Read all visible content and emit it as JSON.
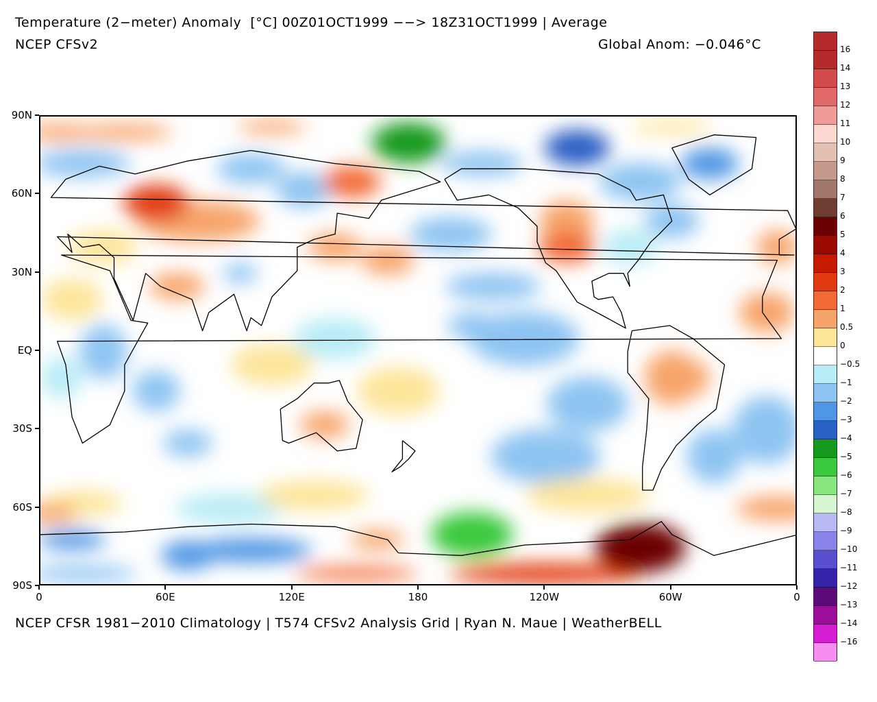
{
  "header": {
    "title": "Temperature (2−meter) Anomaly  [°C] 00Z01OCT1999 −−> 18Z31OCT1999 | Average",
    "subtitle": "NCEP CFSv2",
    "global_anom": "Global Anom: −0.046°C"
  },
  "footer": {
    "credit": "NCEP CFSR 1981−2010 Climatology | T574 CFSv2 Analysis Grid | Ryan N. Maue | WeatherBELL"
  },
  "map": {
    "projection": "equirectangular, Pacific-centered",
    "lat_labels": [
      "90N",
      "60N",
      "30N",
      "EQ",
      "30S",
      "60S",
      "90S"
    ],
    "lon_labels": [
      "0",
      "60E",
      "120E",
      "180",
      "120W",
      "60W",
      "0"
    ],
    "regions": [
      {
        "name": "arctic-east-siberia-cold",
        "lon": 175,
        "lat": 80,
        "value": -4
      },
      {
        "name": "canadian-arctic-cold",
        "lon": 255,
        "lat": 78,
        "value": -3
      },
      {
        "name": "greenland-cold",
        "lon": 318,
        "lat": 72,
        "value": -2
      },
      {
        "name": "russia-warm",
        "lon": 55,
        "lat": 57,
        "value": 3
      },
      {
        "name": "bering-warm",
        "lon": 148,
        "lat": 65,
        "value": 2
      },
      {
        "name": "western-usa-warm",
        "lon": 250,
        "lat": 40,
        "value": 2
      },
      {
        "name": "southern-ocean-pacific-cold",
        "lon": 205,
        "lat": -70,
        "value": -5
      },
      {
        "name": "bellingshausen-warm",
        "lon": 285,
        "lat": -75,
        "value": 6
      },
      {
        "name": "central-pacific-cool",
        "lon": 205,
        "lat": 10,
        "value": -1
      },
      {
        "name": "indian-ocean-cool",
        "lon": 70,
        "lat": -35,
        "value": -1
      },
      {
        "name": "east-antarctica-cool",
        "lon": 70,
        "lat": -78,
        "value": -1.5
      },
      {
        "name": "north-pacific-warm",
        "lon": 165,
        "lat": 35,
        "value": 1.5
      },
      {
        "name": "australia-warm",
        "lon": 135,
        "lat": -28,
        "value": 1
      },
      {
        "name": "south-atlantic-cool",
        "lon": 345,
        "lat": -35,
        "value": -1
      }
    ]
  },
  "colorbar": {
    "levels": [
      {
        "label": "16",
        "color": "#b52a2a"
      },
      {
        "label": "14",
        "color": "#d24a4a"
      },
      {
        "label": "13",
        "color": "#e06868"
      },
      {
        "label": "12",
        "color": "#f09a9a"
      },
      {
        "label": "11",
        "color": "#fcd8d0"
      },
      {
        "label": "10",
        "color": "#e3c0b4"
      },
      {
        "label": "9",
        "color": "#c59a8c"
      },
      {
        "label": "8",
        "color": "#a0776a"
      },
      {
        "label": "7",
        "color": "#6e3c30"
      },
      {
        "label": "6",
        "color": "#6c0000"
      },
      {
        "label": "5",
        "color": "#9a0a00"
      },
      {
        "label": "4",
        "color": "#c51900"
      },
      {
        "label": "3",
        "color": "#e23a10"
      },
      {
        "label": "2",
        "color": "#f26a35"
      },
      {
        "label": "1",
        "color": "#f7a46a"
      },
      {
        "label": "0.5",
        "color": "#fde59a"
      },
      {
        "label": "0",
        "color": "#ffffff"
      },
      {
        "label": "−0.5",
        "color": "#b8ecf6"
      },
      {
        "label": "−1",
        "color": "#8ec4f2"
      },
      {
        "label": "−2",
        "color": "#4f96e4"
      },
      {
        "label": "−3",
        "color": "#2a5fc4"
      },
      {
        "label": "−4",
        "color": "#159a1e"
      },
      {
        "label": "−5",
        "color": "#3ac93e"
      },
      {
        "label": "−6",
        "color": "#88e680"
      },
      {
        "label": "−7",
        "color": "#d6f5d0"
      },
      {
        "label": "−8",
        "color": "#b8b8f5"
      },
      {
        "label": "−9",
        "color": "#8a84ea"
      },
      {
        "label": "−10",
        "color": "#5a4ed0"
      },
      {
        "label": "−11",
        "color": "#3422a8"
      },
      {
        "label": "−12",
        "color": "#5c0a78"
      },
      {
        "label": "−13",
        "color": "#9a0e9a"
      },
      {
        "label": "−14",
        "color": "#d51ed2"
      },
      {
        "label": "−16",
        "color": "#f58ef0"
      }
    ],
    "top_color": "#b52a2a"
  }
}
